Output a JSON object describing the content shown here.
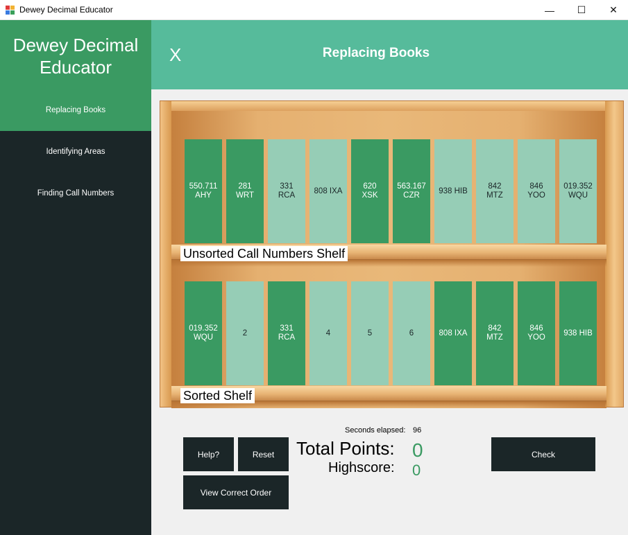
{
  "window": {
    "title": "Dewey Decimal Educator",
    "minimize_glyph": "—",
    "maximize_glyph": "☐",
    "close_glyph": "✕"
  },
  "sidebar": {
    "brand_line1": "Dewey Decimal",
    "brand_line2": "Educator",
    "items": [
      {
        "label": "Replacing Books",
        "active": true
      },
      {
        "label": "Identifying Areas",
        "active": false
      },
      {
        "label": "Finding Call Numbers",
        "active": false
      }
    ]
  },
  "header": {
    "close_label": "X",
    "title": "Replacing Books"
  },
  "colors": {
    "accent_dark_green": "#3a9a62",
    "accent_light_green": "#96cdb6",
    "header_teal": "#56bb9b",
    "sidebar_dark": "#1b2628"
  },
  "unsorted_shelf": {
    "label": "Unsorted Call Numbers Shelf",
    "books": [
      {
        "text": "550.711\nAHY",
        "tone": "dark"
      },
      {
        "text": "281\nWRT",
        "tone": "dark"
      },
      {
        "text": "331\nRCA",
        "tone": "light"
      },
      {
        "text": "808 IXA",
        "tone": "light"
      },
      {
        "text": "620\nXSK",
        "tone": "dark"
      },
      {
        "text": "563.167\nCZR",
        "tone": "dark"
      },
      {
        "text": "938 HIB",
        "tone": "light"
      },
      {
        "text": "842\nMTZ",
        "tone": "light"
      },
      {
        "text": "846\nYOO",
        "tone": "light"
      },
      {
        "text": "019.352\nWQU",
        "tone": "light"
      }
    ]
  },
  "sorted_shelf": {
    "label": "Sorted Shelf",
    "books": [
      {
        "text": "019.352\nWQU",
        "tone": "dark"
      },
      {
        "text": "2",
        "tone": "light"
      },
      {
        "text": "331\nRCA",
        "tone": "dark"
      },
      {
        "text": "4",
        "tone": "light"
      },
      {
        "text": "5",
        "tone": "light"
      },
      {
        "text": "6",
        "tone": "light"
      },
      {
        "text": "808 IXA",
        "tone": "dark"
      },
      {
        "text": "842\nMTZ",
        "tone": "dark"
      },
      {
        "text": "846\nYOO",
        "tone": "dark"
      },
      {
        "text": "938 HIB",
        "tone": "dark"
      }
    ]
  },
  "controls": {
    "help_label": "Help?",
    "reset_label": "Reset",
    "view_order_label": "View Correct Order",
    "check_label": "Check"
  },
  "stats": {
    "seconds_label": "Seconds elapsed:",
    "seconds_value": "96",
    "points_label": "Total Points:",
    "points_value": "0",
    "highscore_label": "Highscore:",
    "highscore_value": "0"
  }
}
